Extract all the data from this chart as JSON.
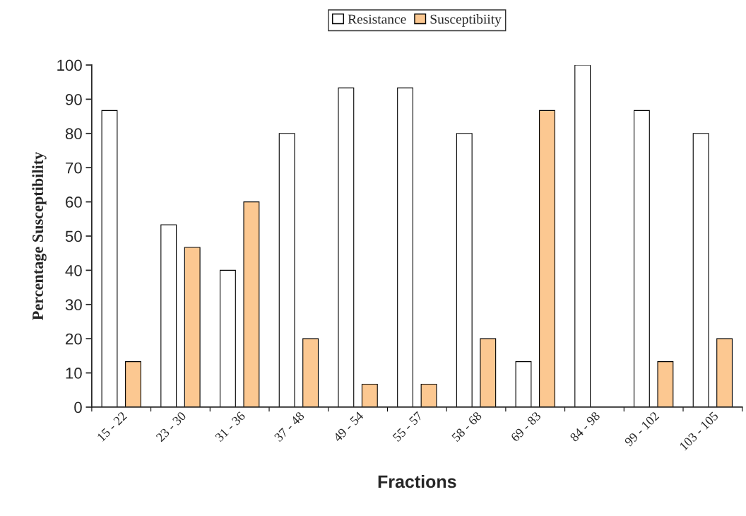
{
  "chart_data": {
    "type": "bar",
    "xlabel": "Fractions",
    "ylabel": "Percentage Susceptibility",
    "categories": [
      "15 - 22",
      "23 - 30",
      "31 - 36",
      "37 - 48",
      "49 - 54",
      "55 - 57",
      "58 - 68",
      "69 - 83",
      "84 - 98",
      "99 - 102",
      "103 - 105"
    ],
    "series": [
      {
        "name": "Resistance",
        "color": "#ffffff",
        "values": [
          86.7,
          53.3,
          40,
          80,
          93.3,
          93.3,
          80,
          13.3,
          100,
          86.7,
          80
        ]
      },
      {
        "name": "Susceptibiity",
        "color": "#fcc891",
        "values": [
          13.3,
          46.7,
          60,
          20,
          6.7,
          6.7,
          20,
          86.7,
          null,
          13.3,
          20
        ]
      }
    ],
    "ylim": [
      0,
      100
    ],
    "yticks": [
      0,
      10,
      20,
      30,
      40,
      50,
      60,
      70,
      80,
      90,
      100
    ],
    "grid": false,
    "legend": "top"
  }
}
